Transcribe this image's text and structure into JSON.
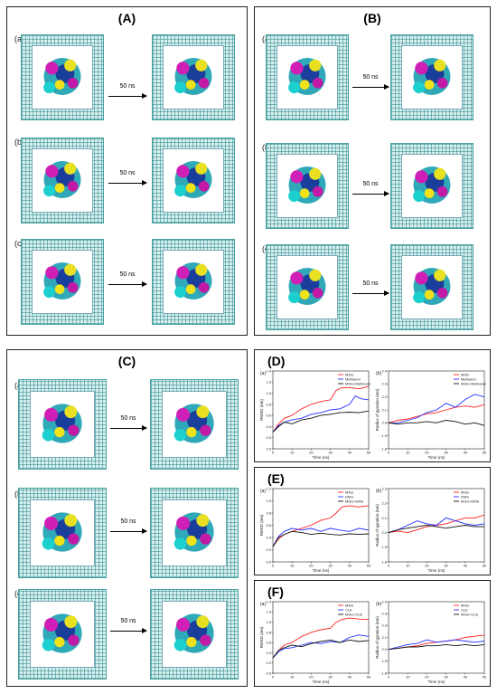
{
  "panels": {
    "A": {
      "title": "(A)",
      "rows": [
        "(a)",
        "(b)",
        "(c)"
      ],
      "arrow_label": "50 ns"
    },
    "B": {
      "title": "(B)",
      "rows": [
        "(a)",
        "(b)",
        "(c)"
      ],
      "arrow_label": "50 ns"
    },
    "C": {
      "title": "(C)",
      "rows": [
        "(a)",
        "(b)",
        "(c)"
      ],
      "arrow_label": "50 ns"
    },
    "D": {
      "title": "(D)"
    },
    "E": {
      "title": "(E)"
    },
    "F": {
      "title": "(F)"
    }
  },
  "colors": {
    "red": "#ff2020",
    "blue": "#2030ff",
    "black": "#111111",
    "water": "#2a8f8f"
  },
  "chart_data": [
    {
      "id": "D-a",
      "type": "line",
      "panel_label": "(a)",
      "xlabel": "Time (ns)",
      "ylabel": "RMSD (nm)",
      "xlim": [
        0,
        50
      ],
      "ylim": [
        0.0,
        1.4
      ],
      "xticks": [
        0,
        10,
        20,
        30,
        40,
        50
      ],
      "yticks": [
        0.0,
        0.2,
        0.4,
        0.6,
        0.8,
        1.0,
        1.2,
        1.4
      ],
      "legend": [
        "MSG",
        "Methanol",
        "MSG+Methanol"
      ],
      "legend_position": "top-right",
      "series": [
        {
          "name": "MSG",
          "color": "#ff2020",
          "x": [
            0,
            3,
            6,
            10,
            15,
            20,
            25,
            30,
            33,
            36,
            40,
            45,
            50
          ],
          "y": [
            0.3,
            0.45,
            0.55,
            0.6,
            0.72,
            0.8,
            0.85,
            0.88,
            1.05,
            1.1,
            1.1,
            1.08,
            1.12
          ]
        },
        {
          "name": "Methanol",
          "color": "#2030ff",
          "x": [
            0,
            3,
            6,
            10,
            15,
            20,
            25,
            30,
            35,
            40,
            43,
            46,
            50
          ],
          "y": [
            0.3,
            0.42,
            0.48,
            0.52,
            0.55,
            0.62,
            0.65,
            0.7,
            0.72,
            0.8,
            0.95,
            0.9,
            0.88
          ]
        },
        {
          "name": "MSG+Methanol",
          "color": "#111111",
          "x": [
            0,
            3,
            6,
            10,
            15,
            20,
            25,
            30,
            35,
            40,
            45,
            50
          ],
          "y": [
            0.3,
            0.4,
            0.48,
            0.45,
            0.52,
            0.55,
            0.6,
            0.62,
            0.65,
            0.66,
            0.65,
            0.68
          ]
        }
      ]
    },
    {
      "id": "D-b",
      "type": "line",
      "panel_label": "(b)",
      "xlabel": "Time (ns)",
      "ylabel": "Radius of gyration (nm)",
      "xlim": [
        0,
        50
      ],
      "ylim": [
        1.8,
        2.4
      ],
      "xticks": [
        0,
        10,
        20,
        30,
        40,
        50
      ],
      "yticks": [
        1.8,
        1.9,
        2.0,
        2.1,
        2.2,
        2.3,
        2.4
      ],
      "legend": [
        "MSG",
        "Methanol",
        "MSG+Methanol"
      ],
      "legend_position": "top-right",
      "series": [
        {
          "name": "MSG",
          "color": "#ff2020",
          "x": [
            0,
            5,
            10,
            15,
            20,
            25,
            30,
            35,
            40,
            45,
            50
          ],
          "y": [
            2.0,
            2.02,
            2.03,
            2.05,
            2.07,
            2.08,
            2.1,
            2.12,
            2.13,
            2.12,
            2.14
          ]
        },
        {
          "name": "Methanol",
          "color": "#2030ff",
          "x": [
            0,
            5,
            10,
            15,
            20,
            25,
            30,
            35,
            40,
            45,
            50
          ],
          "y": [
            2.0,
            2.0,
            2.02,
            2.04,
            2.08,
            2.1,
            2.15,
            2.12,
            2.18,
            2.22,
            2.2
          ]
        },
        {
          "name": "MSG+Methanol",
          "color": "#111111",
          "x": [
            0,
            5,
            10,
            15,
            20,
            25,
            30,
            35,
            40,
            45,
            50
          ],
          "y": [
            2.0,
            1.99,
            2.0,
            2.0,
            2.01,
            2.0,
            2.02,
            2.01,
            1.99,
            2.0,
            1.98
          ]
        }
      ]
    },
    {
      "id": "E-a",
      "type": "line",
      "panel_label": "(a)",
      "xlabel": "Time (ns)",
      "ylabel": "RMSD (nm)",
      "xlim": [
        0,
        50
      ],
      "ylim": [
        0.0,
        1.2
      ],
      "xticks": [
        0,
        10,
        20,
        30,
        40,
        50
      ],
      "yticks": [
        0.0,
        0.2,
        0.4,
        0.6,
        0.8,
        1.0,
        1.2
      ],
      "legend": [
        "MSG",
        "DMS",
        "MSG+DMS"
      ],
      "legend_position": "top-right",
      "series": [
        {
          "name": "MSG",
          "color": "#ff2020",
          "x": [
            0,
            3,
            6,
            10,
            15,
            20,
            25,
            30,
            33,
            36,
            40,
            45,
            50
          ],
          "y": [
            0.25,
            0.38,
            0.45,
            0.5,
            0.55,
            0.6,
            0.68,
            0.72,
            0.8,
            0.9,
            0.92,
            0.9,
            0.92
          ]
        },
        {
          "name": "DMS",
          "color": "#2030ff",
          "x": [
            0,
            3,
            6,
            10,
            15,
            20,
            25,
            30,
            35,
            40,
            45,
            50
          ],
          "y": [
            0.25,
            0.42,
            0.5,
            0.55,
            0.52,
            0.55,
            0.5,
            0.55,
            0.52,
            0.5,
            0.55,
            0.52
          ]
        },
        {
          "name": "MSG+DMS",
          "color": "#111111",
          "x": [
            0,
            3,
            6,
            10,
            15,
            20,
            25,
            30,
            35,
            40,
            45,
            50
          ],
          "y": [
            0.25,
            0.4,
            0.45,
            0.5,
            0.48,
            0.45,
            0.47,
            0.45,
            0.44,
            0.46,
            0.45,
            0.46
          ]
        }
      ]
    },
    {
      "id": "E-b",
      "type": "line",
      "panel_label": "(b)",
      "xlabel": "Time (ns)",
      "ylabel": "Radius of gyration (nm)",
      "xlim": [
        0,
        50
      ],
      "ylim": [
        1.8,
        2.3
      ],
      "xticks": [
        0,
        10,
        20,
        30,
        40,
        50
      ],
      "yticks": [
        1.8,
        1.9,
        2.0,
        2.1,
        2.2,
        2.3
      ],
      "legend": [
        "MSG",
        "DMS",
        "MSG+DMS"
      ],
      "legend_position": "top-right",
      "series": [
        {
          "name": "MSG",
          "color": "#ff2020",
          "x": [
            0,
            5,
            10,
            15,
            20,
            25,
            30,
            35,
            40,
            45,
            50
          ],
          "y": [
            2.0,
            2.01,
            2.0,
            2.02,
            2.04,
            2.05,
            2.06,
            2.08,
            2.1,
            2.1,
            2.12
          ]
        },
        {
          "name": "DMS",
          "color": "#2030ff",
          "x": [
            0,
            5,
            10,
            15,
            20,
            25,
            30,
            35,
            40,
            45,
            50
          ],
          "y": [
            2.0,
            2.02,
            2.05,
            2.08,
            2.06,
            2.05,
            2.1,
            2.08,
            2.06,
            2.05,
            2.06
          ]
        },
        {
          "name": "MSG+DMS",
          "color": "#111111",
          "x": [
            0,
            5,
            10,
            15,
            20,
            25,
            30,
            35,
            40,
            45,
            50
          ],
          "y": [
            2.0,
            2.02,
            2.03,
            2.04,
            2.05,
            2.04,
            2.03,
            2.04,
            2.05,
            2.04,
            2.04
          ]
        }
      ]
    },
    {
      "id": "F-a",
      "type": "line",
      "panel_label": "(a)",
      "xlabel": "Time (ns)",
      "ylabel": "RMSD (nm)",
      "xlim": [
        0,
        50
      ],
      "ylim": [
        0.0,
        1.4
      ],
      "xticks": [
        0,
        10,
        20,
        30,
        40,
        50
      ],
      "yticks": [
        0.0,
        0.2,
        0.4,
        0.6,
        0.8,
        1.0,
        1.2,
        1.4
      ],
      "legend": [
        "MSG",
        "CLE",
        "MSG+CLE"
      ],
      "legend_position": "top-right",
      "series": [
        {
          "name": "MSG",
          "color": "#ff2020",
          "x": [
            0,
            3,
            6,
            10,
            15,
            20,
            25,
            30,
            33,
            36,
            40,
            45,
            50
          ],
          "y": [
            0.3,
            0.45,
            0.55,
            0.6,
            0.72,
            0.8,
            0.85,
            0.88,
            1.0,
            1.05,
            1.08,
            1.06,
            1.05
          ]
        },
        {
          "name": "CLE",
          "color": "#2030ff",
          "x": [
            0,
            3,
            6,
            10,
            15,
            20,
            25,
            30,
            35,
            40,
            45,
            50
          ],
          "y": [
            0.3,
            0.42,
            0.48,
            0.5,
            0.55,
            0.6,
            0.58,
            0.62,
            0.6,
            0.7,
            0.75,
            0.72
          ]
        },
        {
          "name": "MSG+CLE",
          "color": "#111111",
          "x": [
            0,
            3,
            6,
            10,
            15,
            20,
            25,
            30,
            35,
            40,
            45,
            50
          ],
          "y": [
            0.3,
            0.45,
            0.5,
            0.55,
            0.52,
            0.58,
            0.62,
            0.65,
            0.6,
            0.65,
            0.62,
            0.64
          ]
        }
      ]
    },
    {
      "id": "F-b",
      "type": "line",
      "panel_label": "(b)",
      "xlabel": "Time (ns)",
      "ylabel": "Radius of gyration (nm)",
      "xlim": [
        0,
        50
      ],
      "ylim": [
        1.8,
        2.4
      ],
      "xticks": [
        0,
        10,
        20,
        30,
        40,
        50
      ],
      "yticks": [
        1.8,
        1.9,
        2.0,
        2.1,
        2.2,
        2.3,
        2.4
      ],
      "legend": [
        "MSG",
        "CLE",
        "MSG+CLE"
      ],
      "legend_position": "top-right",
      "series": [
        {
          "name": "MSG",
          "color": "#ff2020",
          "x": [
            0,
            5,
            10,
            15,
            20,
            25,
            30,
            35,
            40,
            45,
            50
          ],
          "y": [
            2.0,
            2.01,
            2.02,
            2.03,
            2.05,
            2.06,
            2.07,
            2.08,
            2.1,
            2.11,
            2.12
          ]
        },
        {
          "name": "CLE",
          "color": "#2030ff",
          "x": [
            0,
            5,
            10,
            15,
            20,
            25,
            30,
            35,
            40,
            45,
            50
          ],
          "y": [
            2.0,
            2.02,
            2.04,
            2.05,
            2.08,
            2.06,
            2.07,
            2.08,
            2.07,
            2.06,
            2.07
          ]
        },
        {
          "name": "MSG+CLE",
          "color": "#111111",
          "x": [
            0,
            5,
            10,
            15,
            20,
            25,
            30,
            35,
            40,
            45,
            50
          ],
          "y": [
            2.0,
            2.01,
            2.02,
            2.02,
            2.03,
            2.03,
            2.04,
            2.03,
            2.04,
            2.03,
            2.04
          ]
        }
      ]
    }
  ]
}
